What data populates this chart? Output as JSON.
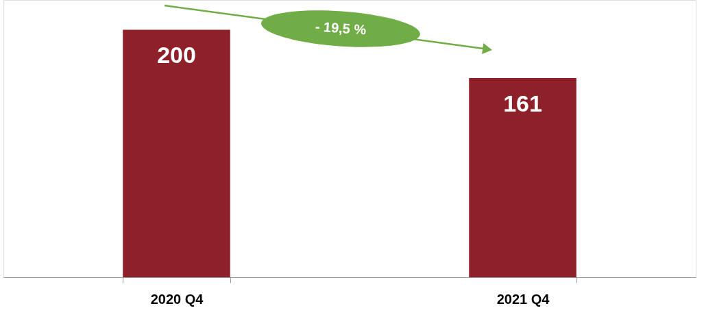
{
  "chart_data": {
    "type": "bar",
    "categories": [
      "2020 Q4",
      "2021 Q4"
    ],
    "values": [
      200,
      161
    ],
    "color": "#8e2029",
    "ylim": [
      0,
      224
    ],
    "data_labels": true,
    "annotations": [
      "- 19,5 %"
    ]
  }
}
